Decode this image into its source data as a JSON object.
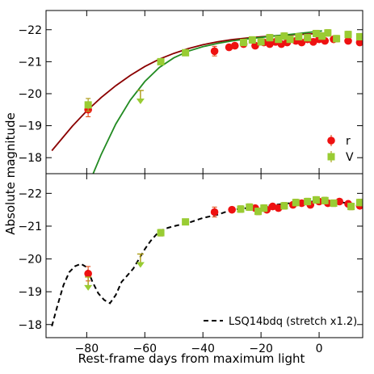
{
  "figure": {
    "xlabel": "Rest-frame days from maximum light",
    "ylabel": "Absolute magnitude"
  },
  "chart_data": [
    {
      "type": "scatter",
      "panel": "top",
      "xlim": [
        -94,
        15
      ],
      "ylim": [
        -17.5,
        -22.6
      ],
      "y_inverted": true,
      "x_ticks": [
        -80,
        -60,
        -40,
        -20,
        0
      ],
      "x_tick_labels": [],
      "y_ticks": [
        -22,
        -21,
        -20,
        -19,
        -18
      ],
      "y_tick_labels": [
        "−22",
        "−21",
        "−20",
        "−19",
        "−18"
      ],
      "legend": {
        "placement": "bottom-right",
        "entries": [
          "r",
          "V"
        ]
      },
      "series": [
        {
          "name": "r",
          "marker": "circle",
          "color": "#ee1111",
          "errorbar_color": "#e55a2a",
          "points": [
            {
              "x": -79.5,
              "y": -19.5,
              "err": 0.22
            },
            {
              "x": -36,
              "y": -21.33,
              "err": 0.15
            },
            {
              "x": -31,
              "y": -21.45,
              "err": 0.08
            },
            {
              "x": -29,
              "y": -21.5,
              "err": 0.08
            },
            {
              "x": -26,
              "y": -21.55,
              "err": 0.08
            },
            {
              "x": -22,
              "y": -21.5,
              "err": 0.08
            },
            {
              "x": -19,
              "y": -21.6,
              "err": 0.08
            },
            {
              "x": -17,
              "y": -21.55,
              "err": 0.08
            },
            {
              "x": -15,
              "y": -21.62,
              "err": 0.08
            },
            {
              "x": -13,
              "y": -21.55,
              "err": 0.08
            },
            {
              "x": -11,
              "y": -21.6,
              "err": 0.08
            },
            {
              "x": -8,
              "y": -21.65,
              "err": 0.08
            },
            {
              "x": -6,
              "y": -21.6,
              "err": 0.08
            },
            {
              "x": -4,
              "y": -21.7,
              "err": 0.08
            },
            {
              "x": -2,
              "y": -21.62,
              "err": 0.08
            },
            {
              "x": 0,
              "y": -21.7,
              "err": 0.08
            },
            {
              "x": 2,
              "y": -21.65,
              "err": 0.08
            },
            {
              "x": 5,
              "y": -21.7,
              "err": 0.08
            },
            {
              "x": 10,
              "y": -21.65,
              "err": 0.08
            },
            {
              "x": 14,
              "y": -21.6,
              "err": 0.08
            }
          ]
        },
        {
          "name": "V",
          "marker": "square",
          "color": "#99cc33",
          "errorbar_color": "#b0a020",
          "points": [
            {
              "x": -79.5,
              "y": -19.65,
              "err": 0.2
            },
            {
              "x": -54.5,
              "y": -21.0,
              "err": 0.05
            },
            {
              "x": -46,
              "y": -21.28,
              "err": 0.05
            },
            {
              "x": -26,
              "y": -21.6,
              "err": 0.1
            },
            {
              "x": -23,
              "y": -21.68,
              "err": 0.1
            },
            {
              "x": -20,
              "y": -21.62,
              "err": 0.1
            },
            {
              "x": -17,
              "y": -21.75,
              "err": 0.1
            },
            {
              "x": -14,
              "y": -21.7,
              "err": 0.1
            },
            {
              "x": -12,
              "y": -21.8,
              "err": 0.1
            },
            {
              "x": -10,
              "y": -21.7,
              "err": 0.1
            },
            {
              "x": -7,
              "y": -21.78,
              "err": 0.1
            },
            {
              "x": -4,
              "y": -21.75,
              "err": 0.1
            },
            {
              "x": -1,
              "y": -21.88,
              "err": 0.1
            },
            {
              "x": 1,
              "y": -21.8,
              "err": 0.1
            },
            {
              "x": 3,
              "y": -21.9,
              "err": 0.1
            },
            {
              "x": 6,
              "y": -21.72,
              "err": 0.1
            },
            {
              "x": 10,
              "y": -21.85,
              "err": 0.1
            },
            {
              "x": 14,
              "y": -21.78,
              "err": 0.1
            }
          ],
          "upper_limits": [
            {
              "x": -61.5,
              "y": -20.1
            }
          ]
        }
      ],
      "curves": [
        {
          "color": "#8b0000",
          "points": [
            [
              -92,
              -18.22
            ],
            [
              -85,
              -18.98
            ],
            [
              -80,
              -19.46
            ],
            [
              -75,
              -19.88
            ],
            [
              -70,
              -20.25
            ],
            [
              -65,
              -20.57
            ],
            [
              -60,
              -20.85
            ],
            [
              -55,
              -21.08
            ],
            [
              -50,
              -21.26
            ],
            [
              -45,
              -21.41
            ],
            [
              -40,
              -21.53
            ],
            [
              -35,
              -21.62
            ],
            [
              -30,
              -21.69
            ],
            [
              -25,
              -21.74
            ],
            [
              -20,
              -21.78
            ],
            [
              -15,
              -21.81
            ],
            [
              -10,
              -21.84
            ],
            [
              -5,
              -21.86
            ],
            [
              0,
              -21.88
            ],
            [
              1,
              -21.89
            ]
          ]
        },
        {
          "color": "#228b22",
          "points": [
            [
              -77.8,
              -17.5
            ],
            [
              -75,
              -18.1
            ],
            [
              -70,
              -19.05
            ],
            [
              -65,
              -19.8
            ],
            [
              -60,
              -20.38
            ],
            [
              -55,
              -20.82
            ],
            [
              -50,
              -21.12
            ],
            [
              -45,
              -21.33
            ],
            [
              -40,
              -21.47
            ],
            [
              -35,
              -21.57
            ],
            [
              -30,
              -21.65
            ],
            [
              -25,
              -21.71
            ],
            [
              -20,
              -21.76
            ],
            [
              -15,
              -21.81
            ],
            [
              -10,
              -21.85
            ],
            [
              -5,
              -21.9
            ],
            [
              0,
              -21.95
            ],
            [
              1,
              -21.96
            ]
          ]
        }
      ]
    },
    {
      "type": "scatter",
      "panel": "bottom",
      "xlim": [
        -94,
        15
      ],
      "ylim": [
        -17.6,
        -22.6
      ],
      "y_inverted": true,
      "x_ticks": [
        -80,
        -60,
        -40,
        -20,
        0
      ],
      "x_tick_labels": [
        "−80",
        "−60",
        "−40",
        "−20",
        "0"
      ],
      "y_ticks": [
        -22,
        -21,
        -20,
        -19,
        -18
      ],
      "y_tick_labels": [
        "−22",
        "−21",
        "−20",
        "−19",
        "−18"
      ],
      "legend": {
        "placement": "bottom-right",
        "entries": [
          "LSQ14bdq (stretch x1.2)"
        ]
      },
      "series": [
        {
          "name": "r",
          "marker": "circle",
          "color": "#ee1111",
          "errorbar_color": "#e55a2a",
          "points": [
            {
              "x": -79.5,
              "y": -19.55,
              "err": 0.22
            },
            {
              "x": -36,
              "y": -21.43,
              "err": 0.15
            },
            {
              "x": -30,
              "y": -21.5,
              "err": 0.08
            },
            {
              "x": -22,
              "y": -21.55,
              "err": 0.08
            },
            {
              "x": -18,
              "y": -21.5,
              "err": 0.08
            },
            {
              "x": -16,
              "y": -21.6,
              "err": 0.08
            },
            {
              "x": -14,
              "y": -21.55,
              "err": 0.08
            },
            {
              "x": -9,
              "y": -21.65,
              "err": 0.08
            },
            {
              "x": -6,
              "y": -21.7,
              "err": 0.08
            },
            {
              "x": -3,
              "y": -21.65,
              "err": 0.08
            },
            {
              "x": 0,
              "y": -21.75,
              "err": 0.08
            },
            {
              "x": 3,
              "y": -21.7,
              "err": 0.08
            },
            {
              "x": 7,
              "y": -21.75,
              "err": 0.08
            },
            {
              "x": 10,
              "y": -21.68,
              "err": 0.08
            },
            {
              "x": 14,
              "y": -21.62,
              "err": 0.08
            }
          ]
        },
        {
          "name": "V",
          "marker": "square",
          "color": "#99cc33",
          "errorbar_color": "#b0a020",
          "points": [
            {
              "x": -54.5,
              "y": -20.8,
              "err": 0.1
            },
            {
              "x": -46,
              "y": -21.13,
              "err": 0.05
            },
            {
              "x": -27,
              "y": -21.52,
              "err": 0.1
            },
            {
              "x": -24,
              "y": -21.58,
              "err": 0.1
            },
            {
              "x": -21,
              "y": -21.45,
              "err": 0.1
            },
            {
              "x": -19,
              "y": -21.55,
              "err": 0.1
            },
            {
              "x": -12,
              "y": -21.62,
              "err": 0.1
            },
            {
              "x": -8,
              "y": -21.72,
              "err": 0.1
            },
            {
              "x": -4,
              "y": -21.75,
              "err": 0.1
            },
            {
              "x": -1,
              "y": -21.8,
              "err": 0.1
            },
            {
              "x": 2,
              "y": -21.78,
              "err": 0.1
            },
            {
              "x": 5,
              "y": -21.7,
              "err": 0.1
            },
            {
              "x": 11,
              "y": -21.6,
              "err": 0.1
            },
            {
              "x": 14,
              "y": -21.72,
              "err": 0.1
            }
          ],
          "upper_limits": [
            {
              "x": -79.5,
              "y": -19.45
            },
            {
              "x": -61.5,
              "y": -20.15
            }
          ]
        }
      ],
      "curves": [
        {
          "name": "LSQ14bdq (stretch x1.2)",
          "color": "#000000",
          "dashed": true,
          "points": [
            [
              -92,
              -17.95
            ],
            [
              -90,
              -18.6
            ],
            [
              -88,
              -19.2
            ],
            [
              -86,
              -19.6
            ],
            [
              -84,
              -19.78
            ],
            [
              -82,
              -19.85
            ],
            [
              -80,
              -19.75
            ],
            [
              -78,
              -19.3
            ],
            [
              -76,
              -18.95
            ],
            [
              -74,
              -18.75
            ],
            [
              -72,
              -18.65
            ],
            [
              -70,
              -18.9
            ],
            [
              -68,
              -19.3
            ],
            [
              -66,
              -19.5
            ],
            [
              -64,
              -19.7
            ],
            [
              -62,
              -20.0
            ],
            [
              -60,
              -20.3
            ],
            [
              -58,
              -20.55
            ],
            [
              -55,
              -20.85
            ],
            [
              -52,
              -20.95
            ],
            [
              -50,
              -21.0
            ],
            [
              -45,
              -21.1
            ],
            [
              -40,
              -21.25
            ],
            [
              -35,
              -21.35
            ],
            [
              -30,
              -21.5
            ],
            [
              -25,
              -21.55
            ],
            [
              -20,
              -21.6
            ],
            [
              -15,
              -21.65
            ],
            [
              -10,
              -21.7
            ],
            [
              -5,
              -21.72
            ],
            [
              0,
              -21.78
            ],
            [
              5,
              -21.75
            ],
            [
              10,
              -21.7
            ],
            [
              15,
              -21.62
            ]
          ]
        }
      ]
    }
  ]
}
